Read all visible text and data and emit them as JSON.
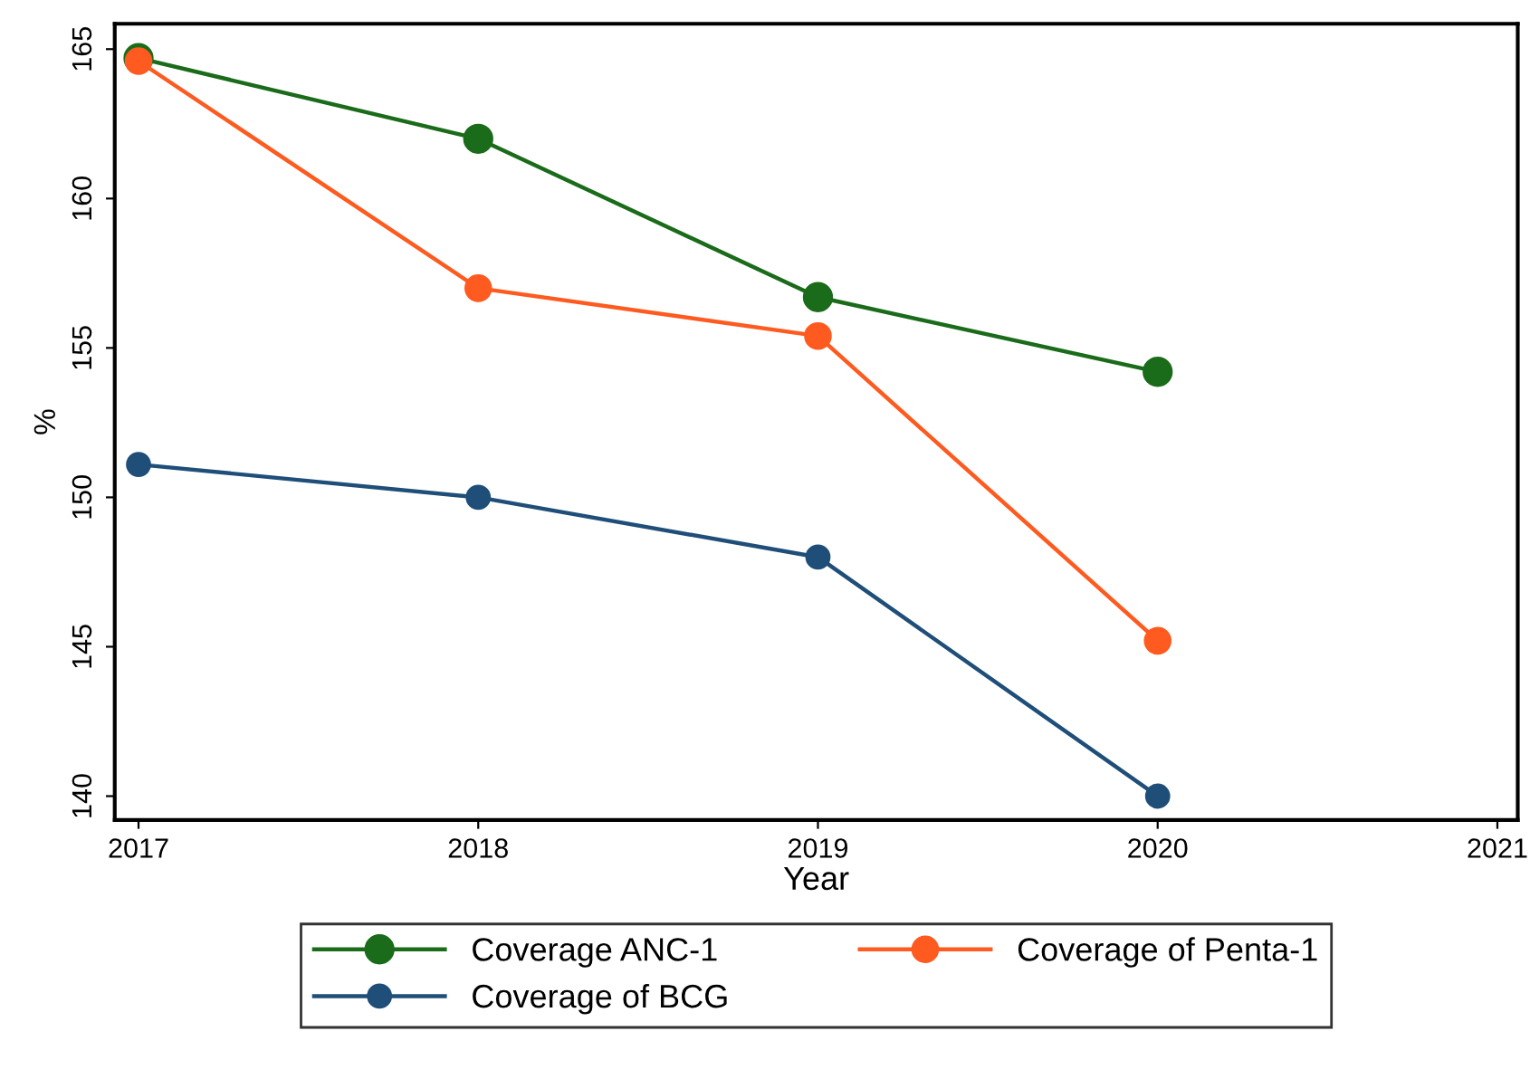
{
  "chart_data": {
    "type": "line",
    "xlabel": "Year",
    "ylabel": "%",
    "x": [
      2017,
      2018,
      2019,
      2020
    ],
    "series": [
      {
        "name": "Coverage ANC-1",
        "color": "#1a6b1a",
        "values": [
          164.7,
          162.0,
          156.7,
          154.2
        ]
      },
      {
        "name": "Coverage of Penta-1",
        "color": "#ff5a1f",
        "values": [
          164.6,
          157.0,
          155.4,
          145.2
        ]
      },
      {
        "name": "Coverage of BCG",
        "color": "#1f4e79",
        "values": [
          151.1,
          150.0,
          148.0,
          140.0
        ]
      }
    ],
    "xlim": [
      2016.93,
      2021.06
    ],
    "xticks": [
      2017,
      2018,
      2019,
      2020,
      2021
    ],
    "ylim": [
      139.2,
      165.85
    ],
    "yticks": [
      140,
      145,
      150,
      155,
      160,
      165
    ],
    "marker": "circle",
    "line_style": "solid",
    "grid": false,
    "legend": "bottom"
  }
}
